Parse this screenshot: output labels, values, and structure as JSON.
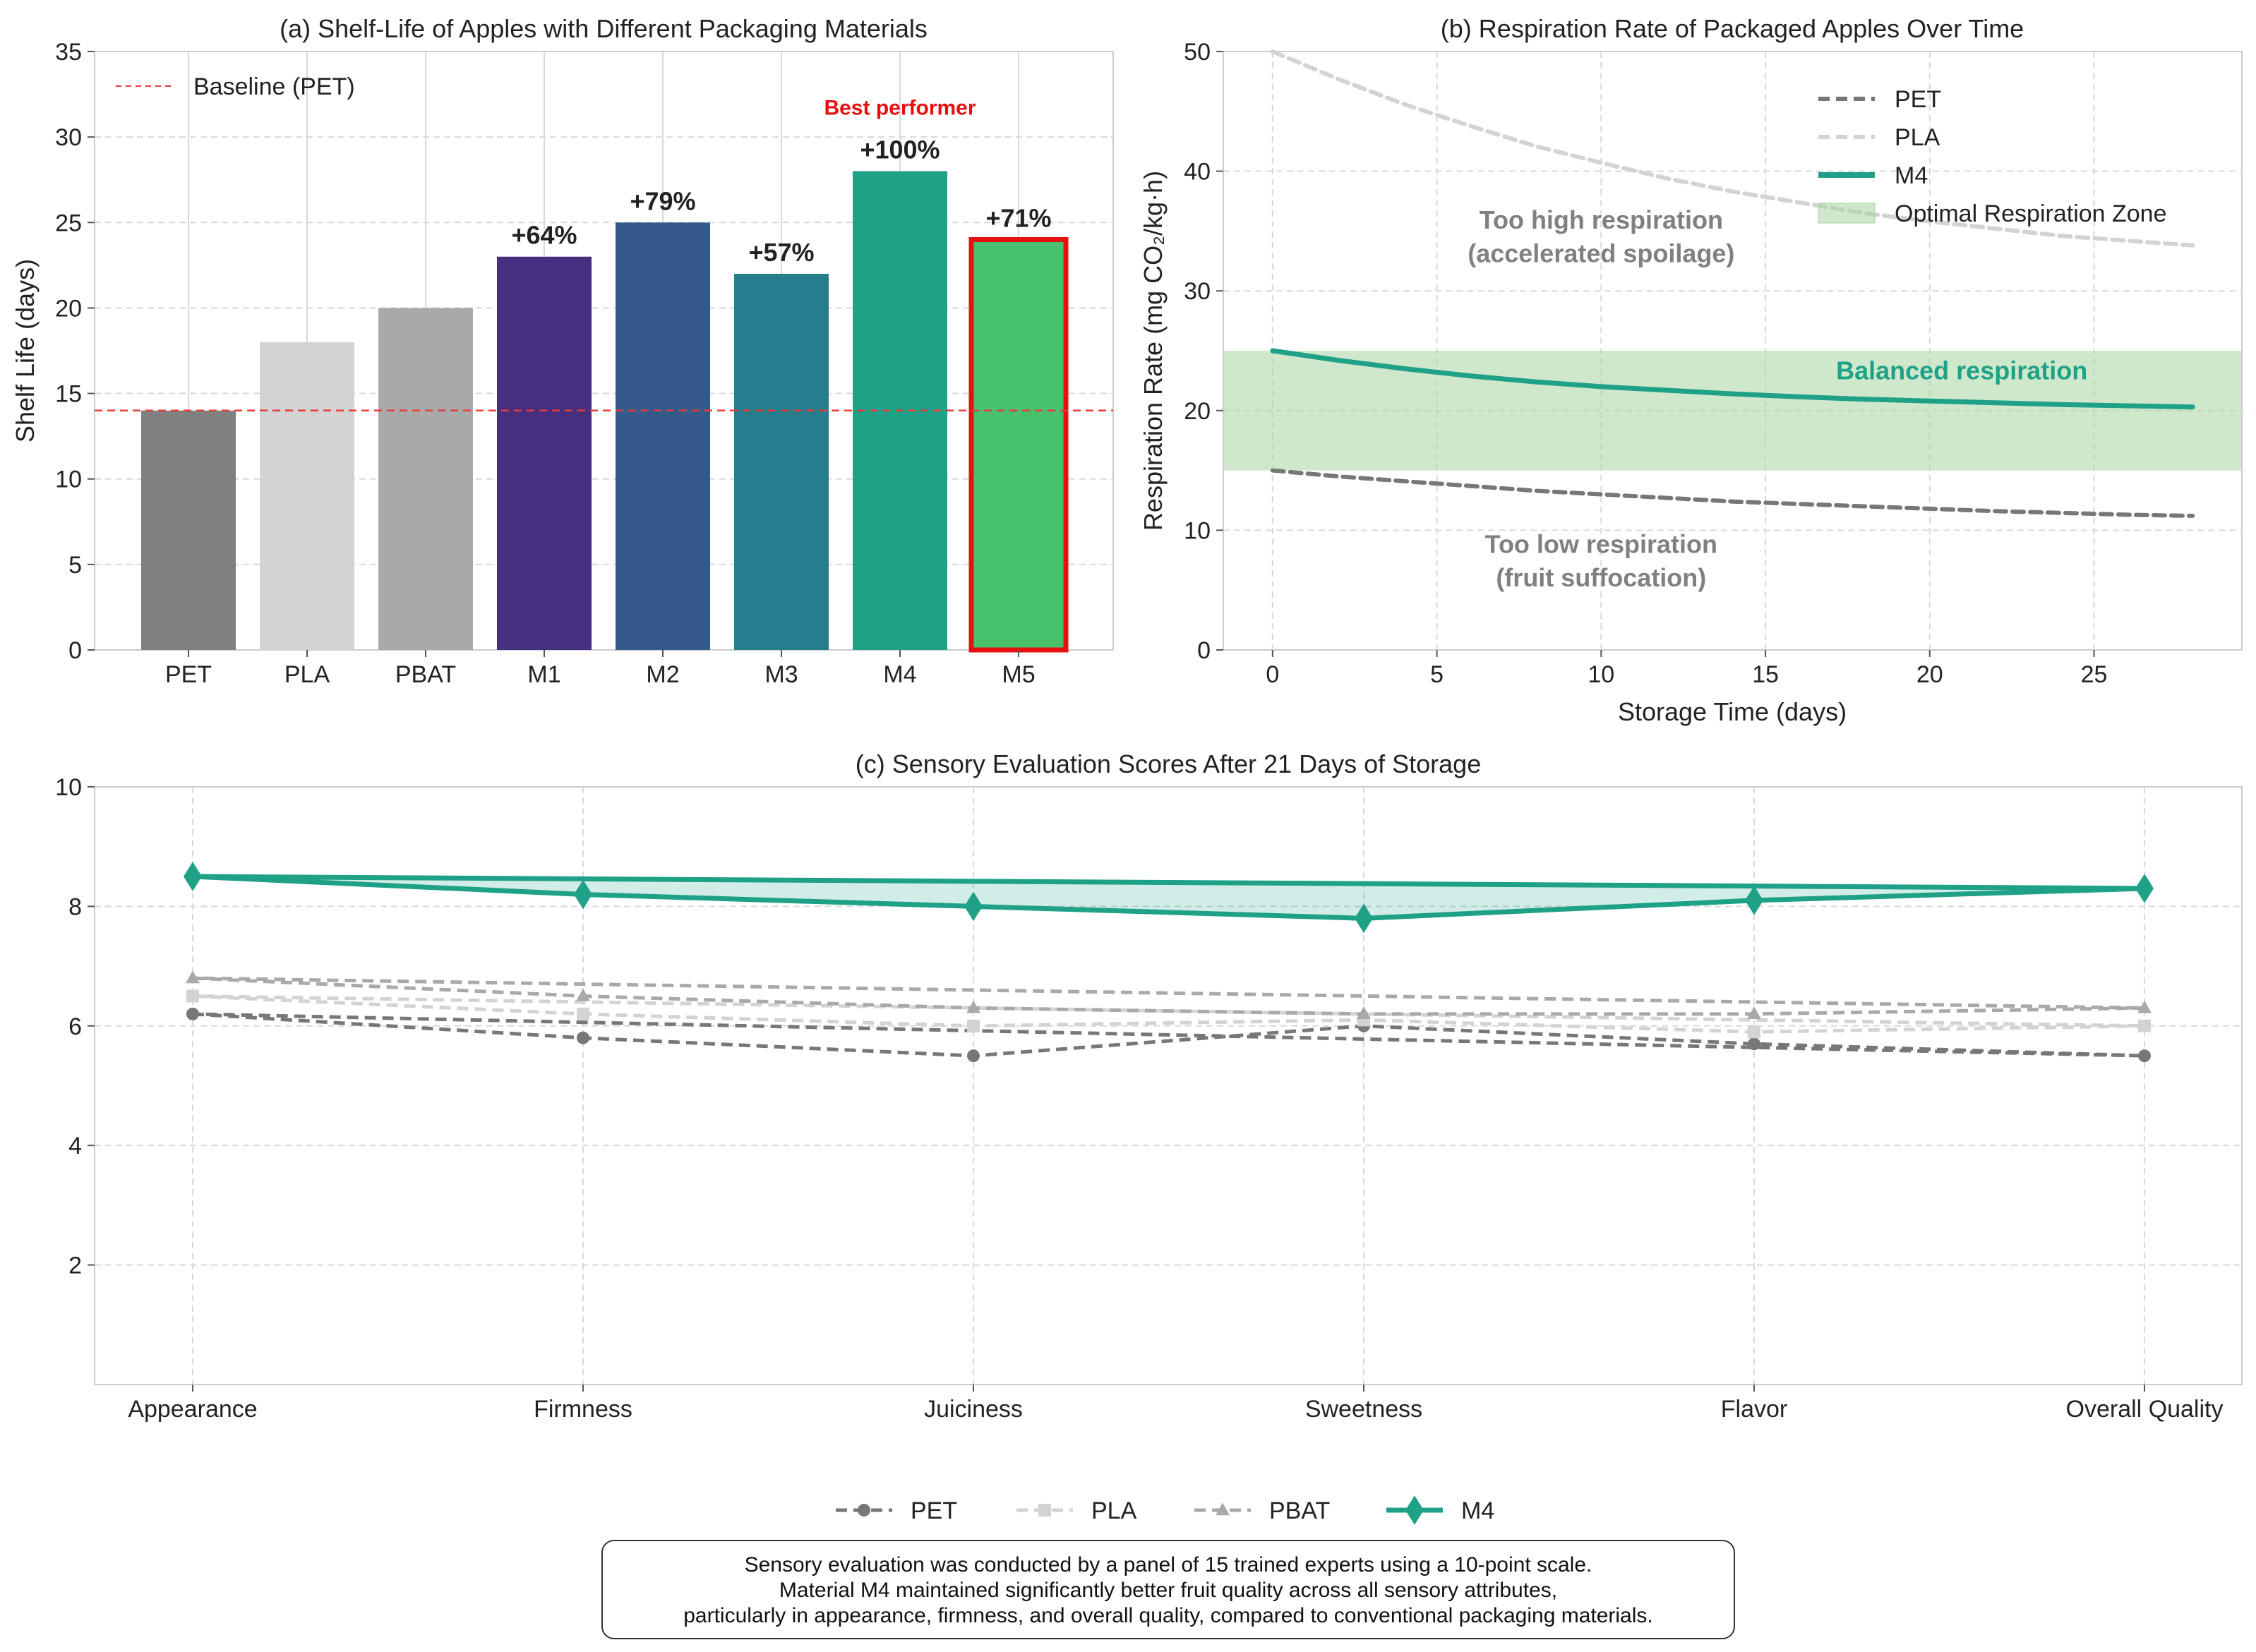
{
  "chart_data": [
    {
      "id": "a",
      "type": "bar",
      "title": "(a) Shelf-Life of Apples with Different Packaging Materials",
      "ylabel": "Shelf Life (days)",
      "xlabel": "",
      "ylim": [
        0,
        35
      ],
      "yticks": [
        0,
        5,
        10,
        15,
        20,
        25,
        30,
        35
      ],
      "categories": [
        "PET",
        "PLA",
        "PBAT",
        "M1",
        "M2",
        "M3",
        "M4",
        "M5"
      ],
      "values": [
        14,
        18,
        20,
        23,
        25,
        22,
        28,
        24
      ],
      "colors": [
        "#808080",
        "#d3d3d3",
        "#a9a9a9",
        "#462f7e",
        "#345a8b",
        "#267d8c",
        "#1fa187",
        "#48c16e"
      ],
      "improvement_labels": [
        "",
        "",
        "",
        "+64%",
        "+79%",
        "+57%",
        "+100%",
        "+71%"
      ],
      "baseline": {
        "value": 14,
        "label": "Baseline (PET)",
        "color": "#e83a3a"
      },
      "highlight": {
        "category": "M5",
        "edge_color": "#e8100f"
      },
      "annotation": {
        "text": "Best performer",
        "category": "M4",
        "color": "#e8100f"
      },
      "grid": true,
      "legend": "top-left"
    },
    {
      "id": "b",
      "type": "line",
      "title": "(b) Respiration Rate of Packaged Apples Over Time",
      "xlabel": "Storage Time (days)",
      "ylabel": "Respiration Rate (mg CO₂/kg·h)",
      "xlim": [
        -1.5,
        29.5
      ],
      "ylim": [
        0,
        50
      ],
      "xticks": [
        0,
        5,
        10,
        15,
        20,
        25
      ],
      "yticks": [
        0,
        10,
        20,
        30,
        40,
        50
      ],
      "x": [
        0,
        2,
        4,
        6,
        8,
        10,
        12,
        14,
        16,
        18,
        20,
        22,
        24,
        26,
        28
      ],
      "series": [
        {
          "name": "PET",
          "style": "dashed",
          "color": "#777777",
          "values": [
            15.0,
            14.5,
            14.1,
            13.7,
            13.3,
            13.0,
            12.7,
            12.4,
            12.2,
            12.0,
            11.8,
            11.6,
            11.45,
            11.3,
            11.2
          ]
        },
        {
          "name": "PLA",
          "style": "dashed",
          "color": "#d3d3d3",
          "values": [
            50.0,
            47.7,
            45.6,
            43.8,
            42.1,
            40.7,
            39.4,
            38.3,
            37.4,
            36.5,
            35.8,
            35.2,
            34.6,
            34.2,
            33.8
          ]
        },
        {
          "name": "M4",
          "style": "solid",
          "color": "#1fa187",
          "values": [
            25.0,
            24.2,
            23.5,
            22.9,
            22.4,
            22.0,
            21.7,
            21.4,
            21.15,
            20.95,
            20.8,
            20.65,
            20.5,
            20.4,
            20.3
          ]
        }
      ],
      "band": {
        "label": "Optimal Respiration Zone",
        "from": 15,
        "to": 25,
        "color": "#a8d5a2"
      },
      "annotations": [
        {
          "text": "Too high respiration",
          "x": 10,
          "y": 35.2,
          "color": "#808080"
        },
        {
          "text": "(accelerated spoilage)",
          "x": 10,
          "y": 32.4,
          "color": "#808080"
        },
        {
          "text": "Balanced respiration",
          "x": 24.8,
          "y": 22.6,
          "color": "#1fa187"
        },
        {
          "text": "Too low respiration",
          "x": 10,
          "y": 8.1,
          "color": "#808080"
        },
        {
          "text": "(fruit suffocation)",
          "x": 10,
          "y": 5.3,
          "color": "#808080"
        }
      ],
      "grid": true,
      "legend": "top-right"
    },
    {
      "id": "c",
      "type": "line",
      "title": "(c) Sensory Evaluation Scores After 21 Days of Storage",
      "ylim": [
        0,
        10
      ],
      "yticks": [
        2,
        4,
        6,
        8,
        10
      ],
      "categories": [
        "Appearance",
        "Firmness",
        "Juiciness",
        "Sweetness",
        "Flavor",
        "Overall Quality"
      ],
      "series": [
        {
          "name": "PET",
          "marker": "circle",
          "style": "dashed",
          "color": "#777777",
          "values": [
            6.2,
            5.8,
            5.5,
            6.0,
            5.7,
            5.5
          ]
        },
        {
          "name": "PLA",
          "marker": "square",
          "style": "dashed",
          "color": "#d3d3d3",
          "values": [
            6.5,
            6.2,
            6.0,
            6.1,
            5.9,
            6.0
          ]
        },
        {
          "name": "PBAT",
          "marker": "triangle",
          "style": "dashed",
          "color": "#a9a9a9",
          "values": [
            6.8,
            6.5,
            6.3,
            6.2,
            6.2,
            6.3
          ]
        },
        {
          "name": "M4",
          "marker": "diamond",
          "style": "solid",
          "color": "#1fa187",
          "values": [
            8.5,
            8.2,
            8.0,
            7.8,
            8.1,
            8.3
          ]
        }
      ],
      "fill_color": "#1fa187",
      "grid": true,
      "legend": "bottom-center"
    }
  ],
  "note": {
    "lines": [
      "Sensory evaluation was conducted by a panel of 15 trained experts using a 10-point scale.",
      "Material M4 maintained significantly better fruit quality across all sensory attributes,",
      "particularly in appearance, firmness, and overall quality, compared to conventional packaging materials."
    ]
  }
}
